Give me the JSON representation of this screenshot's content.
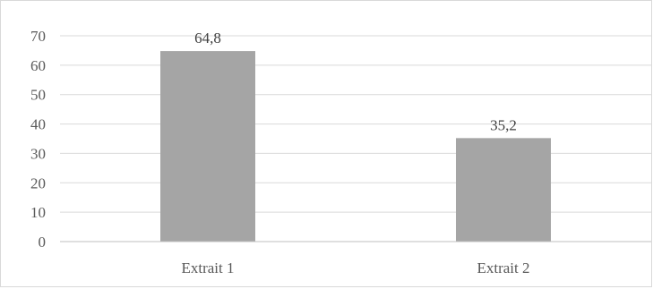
{
  "chart_data": {
    "type": "bar",
    "categories": [
      "Extrait 1",
      "Extrait 2"
    ],
    "values": [
      64.8,
      35.2
    ],
    "data_labels": [
      "64,8",
      "35,2"
    ],
    "ylim": [
      0,
      70
    ],
    "yticks": [
      0,
      10,
      20,
      30,
      40,
      50,
      60,
      70
    ],
    "ytick_labels": [
      "0",
      "10",
      "20",
      "30",
      "40",
      "50",
      "60",
      "70"
    ],
    "title": "",
    "xlabel": "",
    "ylabel": "",
    "grid": true,
    "legend": "none",
    "colors": {
      "bar": "#a5a5a5",
      "grid": "#d9d9d9",
      "axis": "#bfbfbf",
      "text": "#595959"
    }
  }
}
